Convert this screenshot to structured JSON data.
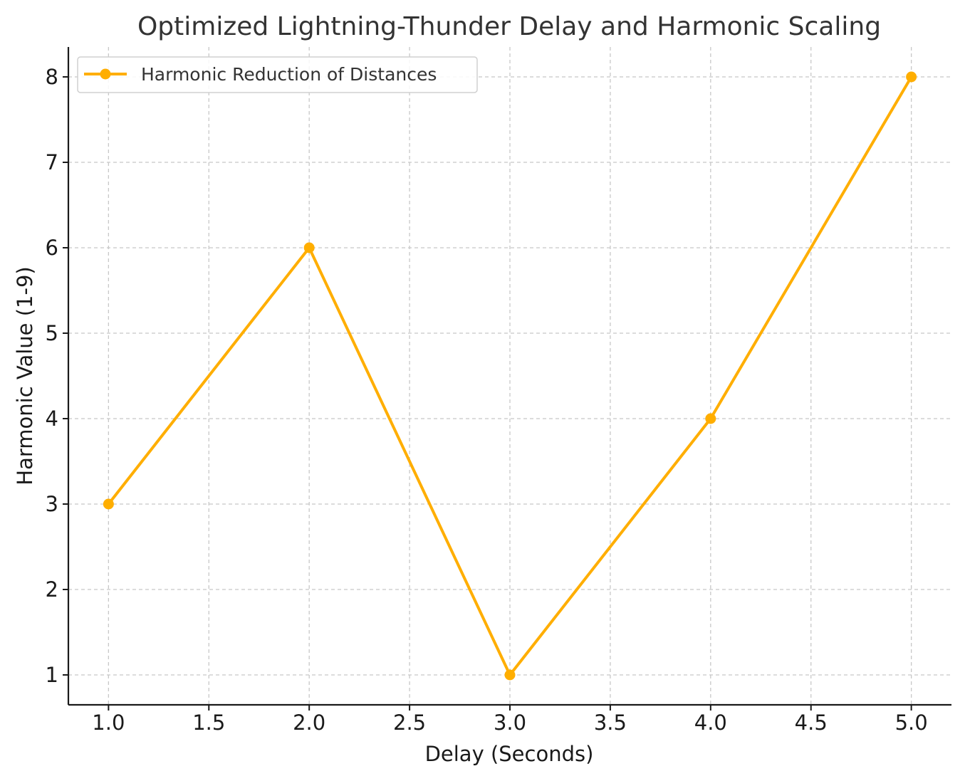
{
  "chart_data": {
    "type": "line",
    "title": "Optimized Lightning-Thunder Delay and Harmonic Scaling",
    "xlabel": "Delay (Seconds)",
    "ylabel": "Harmonic Value (1-9)",
    "x": [
      1.0,
      2.0,
      3.0,
      4.0,
      5.0
    ],
    "series": [
      {
        "name": "Harmonic Reduction of Distances",
        "values": [
          3,
          6,
          1,
          4,
          8
        ],
        "color": "#FFAE00",
        "marker": "circle"
      }
    ],
    "xlim": [
      0.8,
      5.2
    ],
    "ylim": [
      0.65,
      8.35
    ],
    "xticks": [
      "1.0",
      "1.5",
      "2.0",
      "2.5",
      "3.0",
      "3.5",
      "4.0",
      "4.5",
      "5.0"
    ],
    "yticks": [
      "1",
      "2",
      "3",
      "4",
      "5",
      "6",
      "7",
      "8"
    ],
    "grid": true,
    "legend_position": "top-left"
  }
}
